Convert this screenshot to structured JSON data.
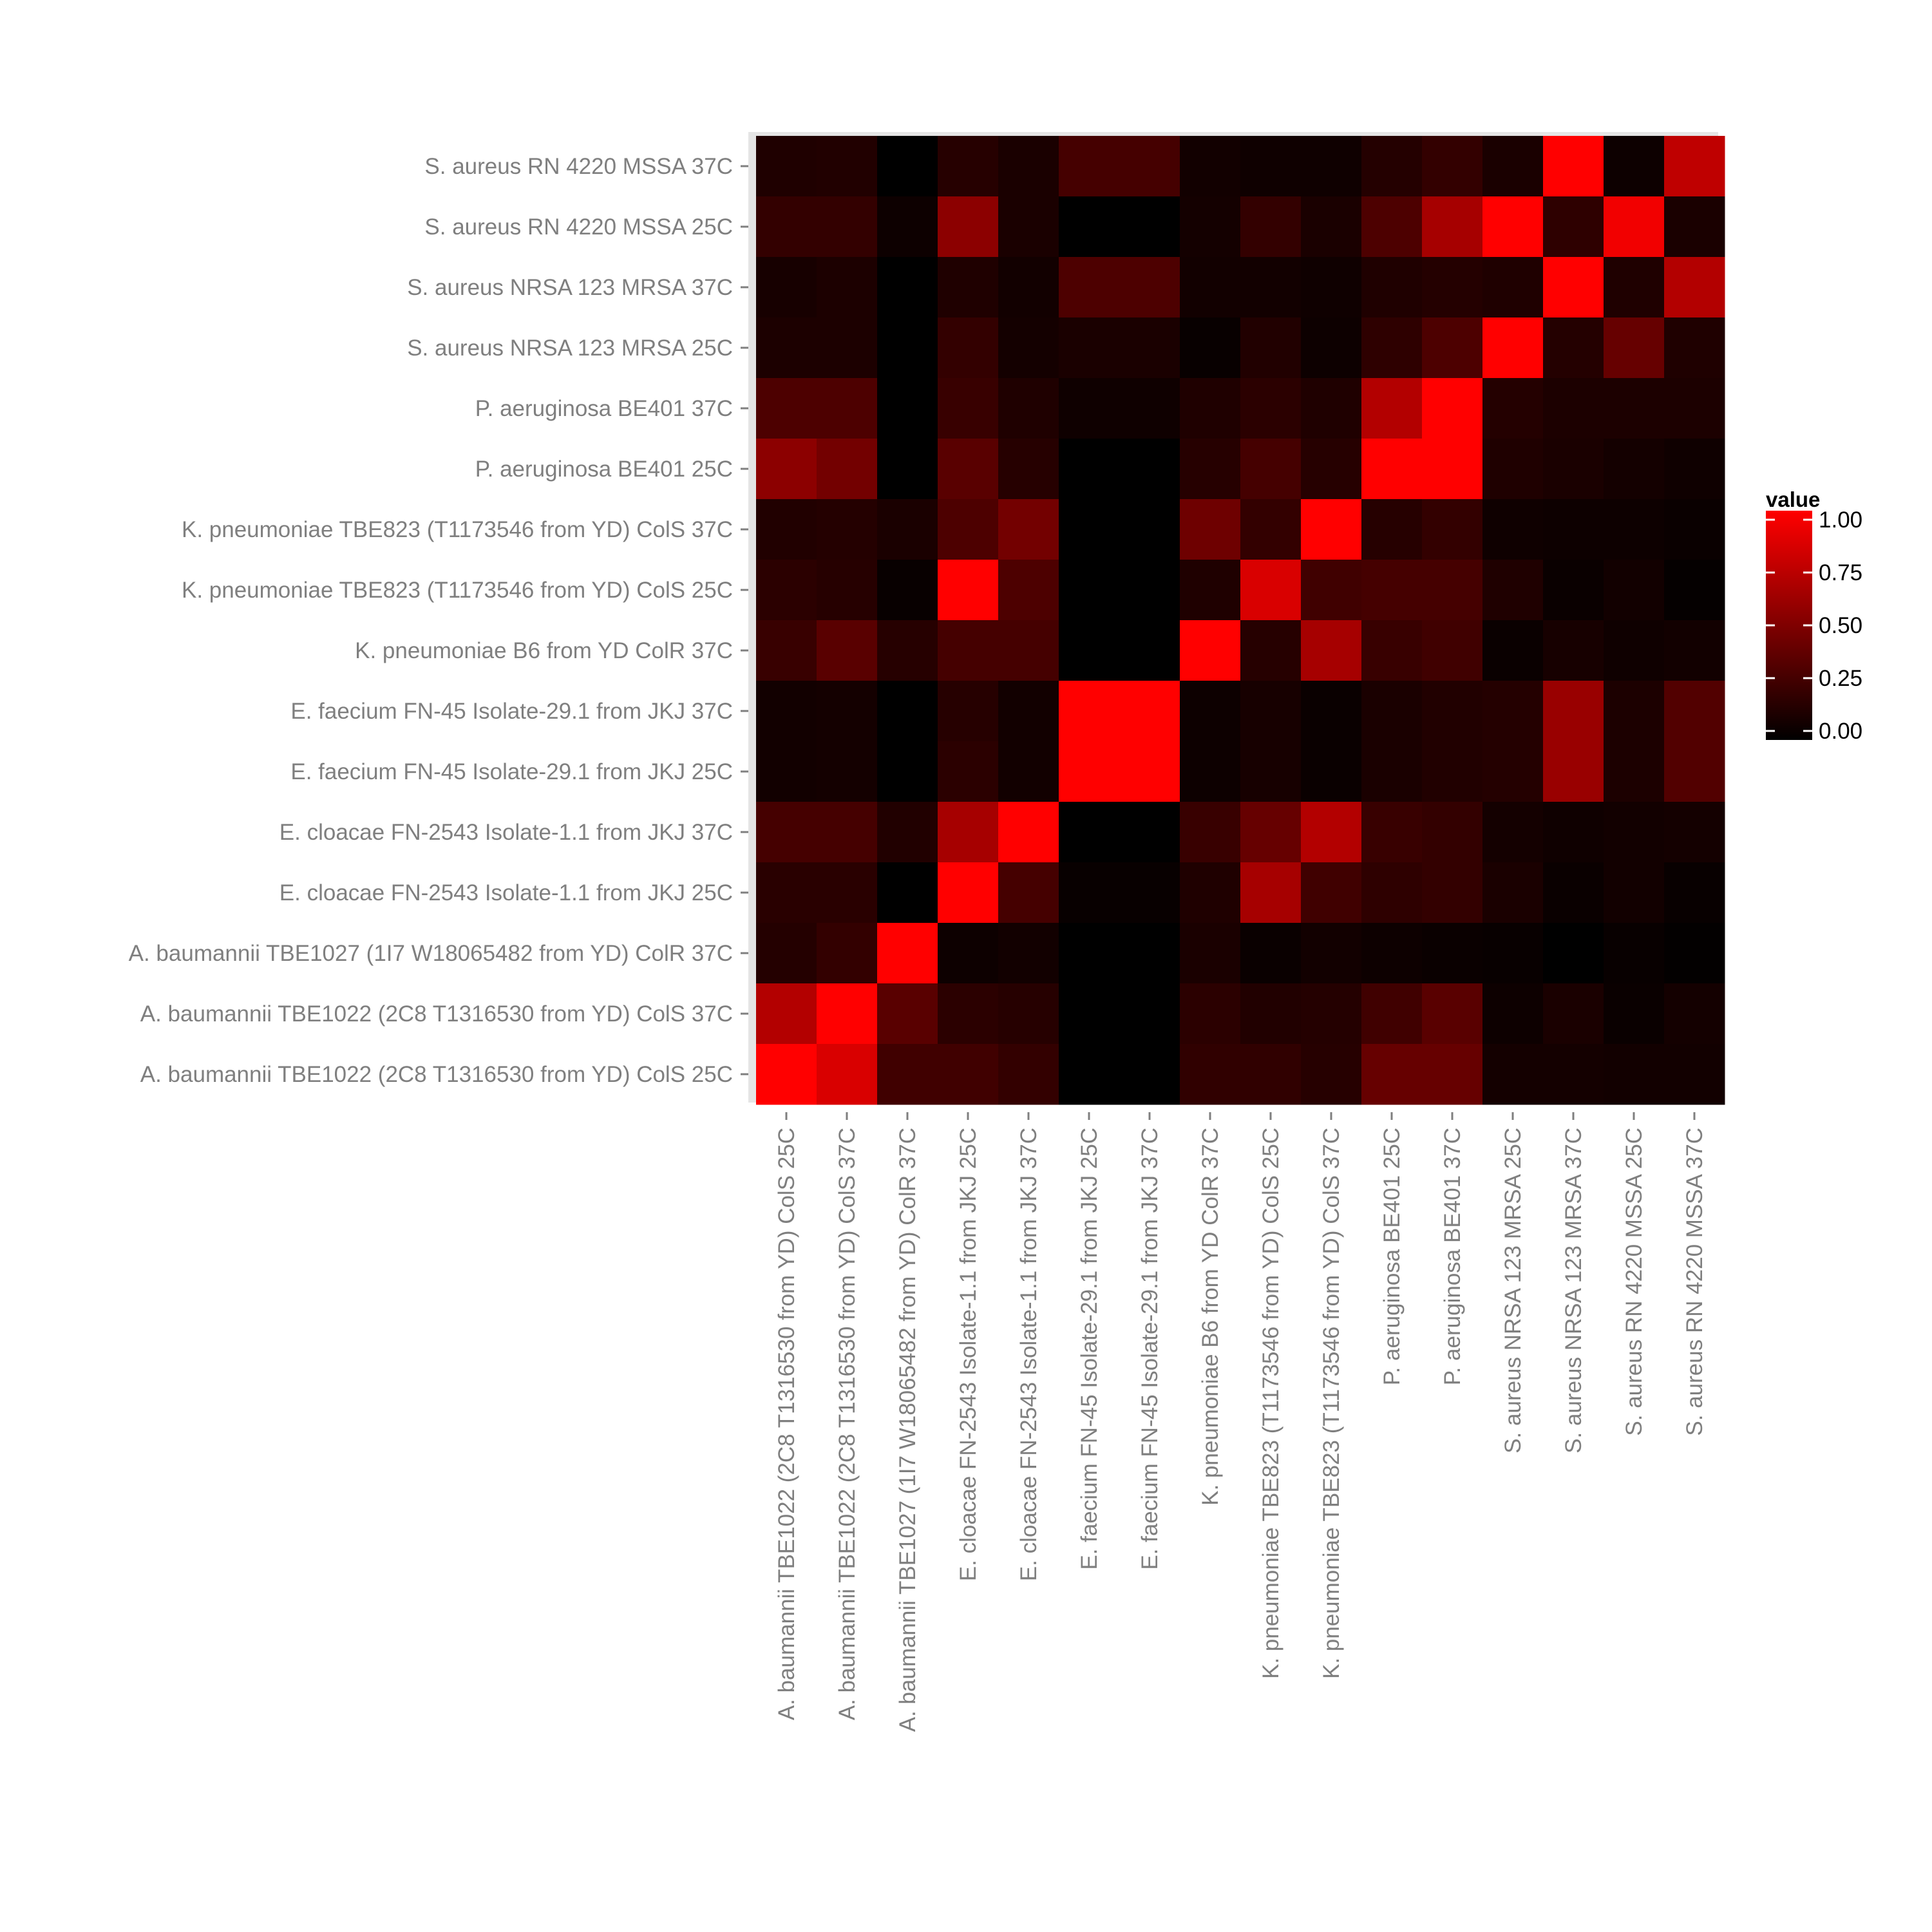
{
  "chart_data": {
    "type": "heatmap",
    "x_categories": [
      "A. baumannii TBE1022 (2C8 T1316530 from YD) ColS 25C",
      "A. baumannii TBE1022 (2C8 T1316530 from YD) ColS 37C",
      "A. baumannii TBE1027 (1I7 W18065482 from YD) ColR 37C",
      "E. cloacae FN-2543 Isolate-1.1 from JKJ 25C",
      "E. cloacae FN-2543 Isolate-1.1 from JKJ 37C",
      "E. faecium FN-45 Isolate-29.1 from JKJ 25C",
      "E. faecium FN-45 Isolate-29.1 from JKJ 37C",
      "K. pneumoniae B6 from YD ColR 37C",
      "K. pneumoniae TBE823 (T1173546 from YD) ColS 25C",
      "K. pneumoniae TBE823 (T1173546 from YD) ColS 37C",
      "P. aeruginosa BE401 25C",
      "P. aeruginosa BE401 37C",
      "S. aureus NRSA 123 MRSA 25C",
      "S. aureus NRSA 123 MRSA 37C",
      "S. aureus RN 4220 MSSA 25C",
      "S. aureus RN 4220 MSSA 37C"
    ],
    "y_categories_top_to_bottom": [
      "S. aureus RN 4220 MSSA 37C",
      "S. aureus RN 4220 MSSA 25C",
      "S. aureus NRSA 123 MRSA 37C",
      "S. aureus NRSA 123 MRSA 25C",
      "P. aeruginosa BE401 37C",
      "P. aeruginosa BE401 25C",
      "K. pneumoniae TBE823 (T1173546 from YD) ColS 37C",
      "K. pneumoniae TBE823 (T1173546 from YD) ColS 25C",
      "K. pneumoniae B6 from YD ColR 37C",
      "E. faecium FN-45 Isolate-29.1 from JKJ 37C",
      "E. faecium FN-45 Isolate-29.1 from JKJ 25C",
      "E. cloacae FN-2543 Isolate-1.1 from JKJ 37C",
      "E. cloacae FN-2543 Isolate-1.1 from JKJ 25C",
      "A. baumannii TBE1027 (1I7 W18065482 from YD) ColR 37C",
      "A. baumannii TBE1022 (2C8 T1316530 from YD) ColS 37C",
      "A. baumannii TBE1022 (2C8 T1316530 from YD) ColS 25C"
    ],
    "values": [
      [
        0.12,
        0.13,
        0.0,
        0.15,
        0.1,
        0.27,
        0.27,
        0.07,
        0.06,
        0.06,
        0.14,
        0.2,
        0.1,
        1.0,
        0.05,
        0.75
      ],
      [
        0.2,
        0.2,
        0.05,
        0.55,
        0.1,
        0.0,
        0.0,
        0.08,
        0.2,
        0.1,
        0.3,
        0.65,
        1.0,
        0.18,
        0.95,
        0.1
      ],
      [
        0.09,
        0.11,
        0.0,
        0.12,
        0.07,
        0.3,
        0.3,
        0.07,
        0.07,
        0.06,
        0.12,
        0.14,
        0.12,
        1.0,
        0.12,
        0.7
      ],
      [
        0.11,
        0.11,
        0.0,
        0.2,
        0.08,
        0.1,
        0.1,
        0.03,
        0.13,
        0.05,
        0.18,
        0.3,
        1.0,
        0.14,
        0.4,
        0.12
      ],
      [
        0.3,
        0.3,
        0.0,
        0.22,
        0.12,
        0.06,
        0.06,
        0.12,
        0.17,
        0.12,
        0.7,
        1.0,
        0.14,
        0.11,
        0.11,
        0.11
      ],
      [
        0.55,
        0.45,
        0.0,
        0.35,
        0.15,
        0.0,
        0.0,
        0.15,
        0.27,
        0.15,
        1.0,
        1.0,
        0.12,
        0.1,
        0.08,
        0.06
      ],
      [
        0.13,
        0.14,
        0.1,
        0.3,
        0.45,
        0.0,
        0.0,
        0.43,
        0.2,
        1.0,
        0.15,
        0.2,
        0.06,
        0.05,
        0.05,
        0.04
      ],
      [
        0.17,
        0.15,
        0.03,
        1.0,
        0.3,
        0.0,
        0.0,
        0.12,
        0.85,
        0.25,
        0.27,
        0.27,
        0.12,
        0.04,
        0.07,
        0.02
      ],
      [
        0.22,
        0.35,
        0.15,
        0.27,
        0.27,
        0.0,
        0.0,
        1.0,
        0.15,
        0.65,
        0.22,
        0.25,
        0.04,
        0.09,
        0.06,
        0.07
      ],
      [
        0.07,
        0.08,
        0.0,
        0.15,
        0.07,
        1.0,
        1.0,
        0.05,
        0.09,
        0.04,
        0.1,
        0.13,
        0.14,
        0.6,
        0.11,
        0.32
      ],
      [
        0.07,
        0.08,
        0.0,
        0.17,
        0.07,
        1.0,
        1.0,
        0.05,
        0.09,
        0.04,
        0.1,
        0.13,
        0.14,
        0.6,
        0.11,
        0.32
      ],
      [
        0.27,
        0.27,
        0.13,
        0.65,
        1.0,
        0.0,
        0.0,
        0.22,
        0.4,
        0.7,
        0.22,
        0.2,
        0.08,
        0.06,
        0.07,
        0.08
      ],
      [
        0.16,
        0.16,
        0.0,
        1.0,
        0.27,
        0.03,
        0.03,
        0.12,
        0.65,
        0.25,
        0.18,
        0.2,
        0.1,
        0.04,
        0.07,
        0.03
      ],
      [
        0.14,
        0.2,
        1.0,
        0.05,
        0.07,
        0.0,
        0.0,
        0.1,
        0.04,
        0.07,
        0.05,
        0.04,
        0.03,
        0.0,
        0.03,
        0.01
      ],
      [
        0.7,
        1.0,
        0.35,
        0.17,
        0.15,
        0.0,
        0.0,
        0.17,
        0.13,
        0.14,
        0.25,
        0.35,
        0.05,
        0.1,
        0.04,
        0.08
      ],
      [
        1.0,
        0.85,
        0.25,
        0.25,
        0.2,
        0.0,
        0.0,
        0.19,
        0.19,
        0.15,
        0.4,
        0.4,
        0.08,
        0.08,
        0.07,
        0.07
      ]
    ],
    "color_scale": {
      "low": "#000000",
      "high": "#FF0000"
    },
    "legend": {
      "title": "value",
      "placement": "right",
      "breaks": [
        "1.00",
        "0.75",
        "0.50",
        "0.25",
        "0.00"
      ],
      "break_values": [
        1.0,
        0.75,
        0.5,
        0.25,
        0.0
      ]
    },
    "title": "",
    "xlabel": "",
    "ylabel": "",
    "value_range": [
      0,
      1
    ]
  }
}
